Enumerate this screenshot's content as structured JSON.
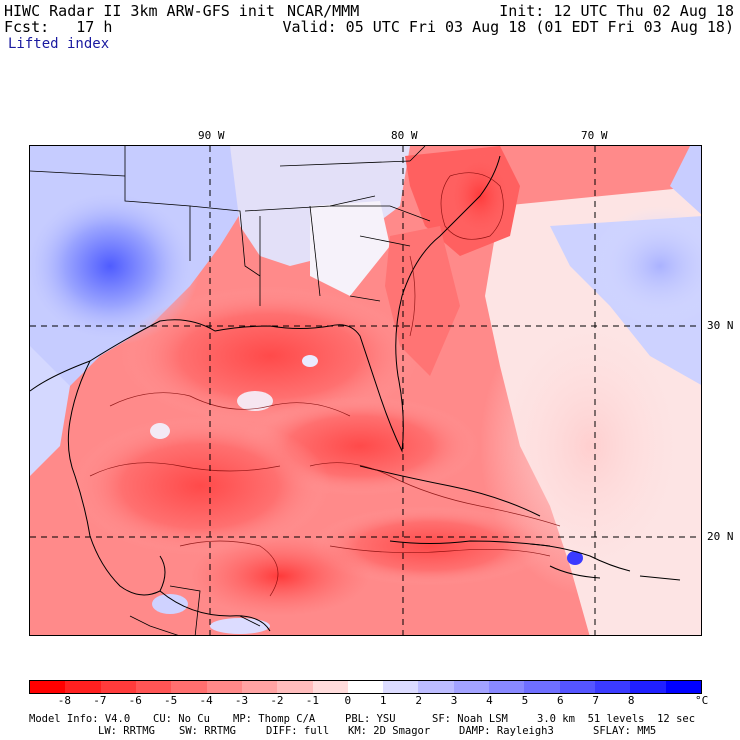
{
  "header": {
    "line1_left": "HIWC Radar II 3km ARW-GFS init",
    "line1_mid": "NCAR/MMM",
    "line1_right": "Init: 12 UTC Thu 02 Aug 18",
    "line2_left": "Fcst:   17 h",
    "line2_right": "Valid: 05 UTC Fri 03 Aug 18 (01 EDT Fri 03 Aug 18)",
    "field": "Lifted index"
  },
  "map": {
    "longitudes": [
      "90 W",
      "80 W",
      "70 W"
    ],
    "latitudes": [
      "30 N",
      "20 N"
    ]
  },
  "colorbar": {
    "ticks": [
      "-8",
      "-7",
      "-6",
      "-5",
      "-4",
      "-3",
      "-2",
      "-1",
      "0",
      "1",
      "2",
      "3",
      "4",
      "5",
      "6",
      "7",
      "8"
    ],
    "unit": "°C",
    "colors": [
      "#ff0000",
      "#ff2020",
      "#ff3b3b",
      "#ff5555",
      "#ff6f6f",
      "#ff8989",
      "#ffa3a3",
      "#ffbdbd",
      "#ffdcdc",
      "#ffffff",
      "#dcdcff",
      "#bdbdff",
      "#a3a3ff",
      "#8989ff",
      "#6f6fff",
      "#5555ff",
      "#3b3bff",
      "#2020ff",
      "#0000ff"
    ]
  },
  "footer": {
    "line1_a": "Model Info: V4.0",
    "line1_b": "CU: No Cu",
    "line1_c": "MP: Thomp C/A",
    "line1_d": "PBL: YSU",
    "line1_e": "SF: Noah LSM",
    "line1_f": "3.0 km  51 levels  12 sec",
    "line2_a": "LW: RRTMG",
    "line2_b": "SW: RRTMG",
    "line2_c": "DIFF: full",
    "line2_d": "KM: 2D Smagor",
    "line2_e": "DAMP: Rayleigh3",
    "line2_f": "SFLAY: MM5"
  }
}
